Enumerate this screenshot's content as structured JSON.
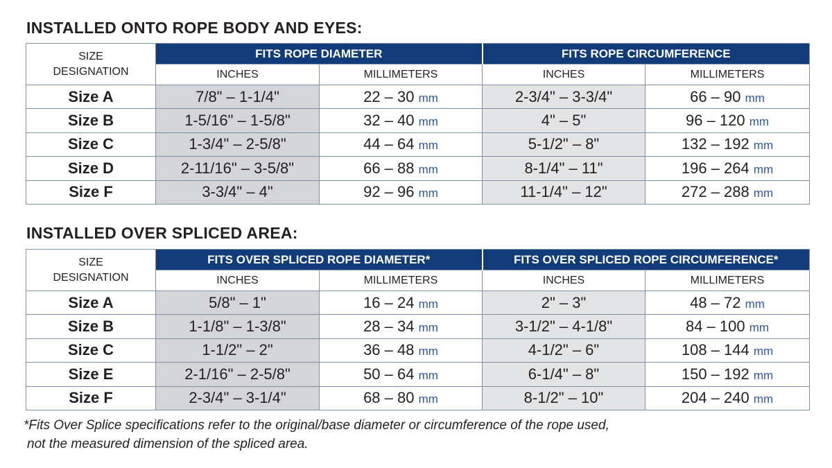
{
  "section1": {
    "title": "INSTALLED ONTO ROPE BODY AND EYES:",
    "size_header": [
      "SIZE",
      "DESIGNATION"
    ],
    "group_headers": [
      "FITS ROPE DIAMETER",
      "FITS ROPE CIRCUMFERENCE"
    ],
    "unit_headers": [
      "INCHES",
      "MILLIMETERS",
      "INCHES",
      "MILLIMETERS"
    ],
    "rows": [
      {
        "size": "Size A",
        "dia_in": "7/8\" – 1-1/4\"",
        "dia_mm": "22 – 30",
        "circ_in": "2-3/4\" – 3-3/4\"",
        "circ_mm": "66 – 90"
      },
      {
        "size": "Size B",
        "dia_in": "1-5/16\" – 1-5/8\"",
        "dia_mm": "32 – 40",
        "circ_in": "4\" – 5\"",
        "circ_mm": "96 – 120"
      },
      {
        "size": "Size C",
        "dia_in": "1-3/4\" – 2-5/8\"",
        "dia_mm": "44 – 64",
        "circ_in": "5-1/2\" – 8\"",
        "circ_mm": "132 – 192"
      },
      {
        "size": "Size D",
        "dia_in": "2-11/16\" – 3-5/8\"",
        "dia_mm": "66 – 88",
        "circ_in": "8-1/4\" – 11\"",
        "circ_mm": "196 – 264"
      },
      {
        "size": "Size F",
        "dia_in": "3-3/4\" – 4\"",
        "dia_mm": "92 – 96",
        "circ_in": "11-1/4\" – 12\"",
        "circ_mm": "272 – 288"
      }
    ]
  },
  "section2": {
    "title": "INSTALLED OVER SPLICED AREA:",
    "size_header": [
      "SIZE",
      "DESIGNATION"
    ],
    "group_headers": [
      "FITS OVER SPLICED ROPE DIAMETER*",
      "FITS OVER SPLICED ROPE CIRCUMFERENCE*"
    ],
    "unit_headers": [
      "INCHES",
      "MILLIMETERS",
      "INCHES",
      "MILLIMETERS"
    ],
    "rows": [
      {
        "size": "Size A",
        "dia_in": "5/8\" – 1\"",
        "dia_mm": "16 – 24",
        "circ_in": "2\" – 3\"",
        "circ_mm": "48 – 72"
      },
      {
        "size": "Size B",
        "dia_in": "1-1/8\" – 1-3/8\"",
        "dia_mm": "28 – 34",
        "circ_in": "3-1/2\" – 4-1/8\"",
        "circ_mm": "84 – 100"
      },
      {
        "size": "Size C",
        "dia_in": "1-1/2\" – 2\"",
        "dia_mm": "36 – 48",
        "circ_in": "4-1/2\" – 6\"",
        "circ_mm": "108 – 144"
      },
      {
        "size": "Size E",
        "dia_in": "2-1/16\" – 2-5/8\"",
        "dia_mm": "50 – 64",
        "circ_in": "6-1/4\" – 8\"",
        "circ_mm": "150 – 192"
      },
      {
        "size": "Size F",
        "dia_in": "2-3/4\" – 3-1/4\"",
        "dia_mm": "68 – 80",
        "circ_in": "8-1/2\" – 10\"",
        "circ_mm": "204 – 240"
      }
    ]
  },
  "mm_unit": "mm",
  "footnote": {
    "line1": "*Fits Over Splice specifications refer to the original/base diameter or circumference of the rope used,",
    "line2": "not the measured dimension of the spliced area."
  },
  "colors": {
    "header_blue": "#123b7a",
    "mm_blue": "#2e57a0",
    "border": "#7f8fa8",
    "shade": "#e2e3e5",
    "shade_dark": "#d3d5d8"
  }
}
